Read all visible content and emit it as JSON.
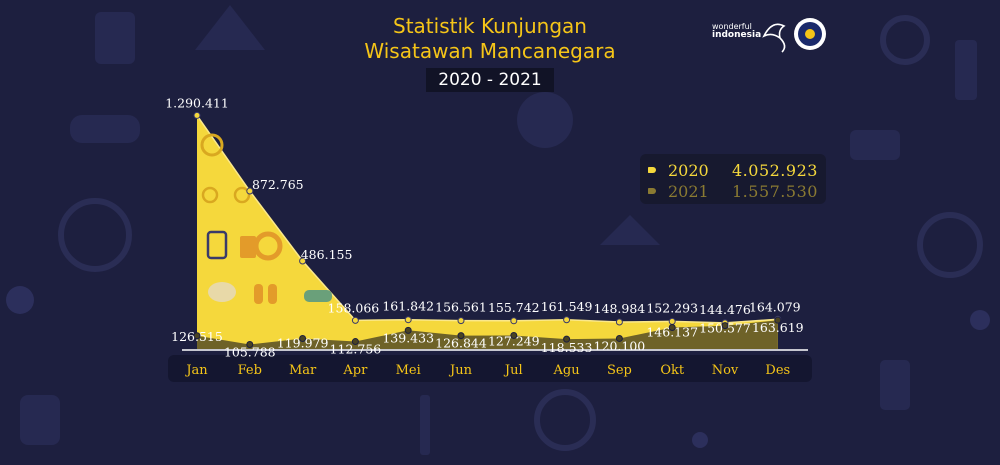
{
  "header": {
    "title_line1": "Statistik Kunjungan",
    "title_line2": "Wisatawan Mancanegara",
    "years": "2020 - 2021"
  },
  "logo": {
    "line1": "wonderful",
    "line2": "indonesia",
    "icons": [
      "wonderful-indonesia-logo",
      "ministry-emblem"
    ]
  },
  "colors": {
    "background": "#1d1f3f",
    "series_2020": "#f5d83c",
    "series_2021": "#6e6228",
    "accent": "#f5c518"
  },
  "legend": {
    "items": [
      {
        "year": "2020",
        "total": "4.052.923"
      },
      {
        "year": "2021",
        "total": "1.557.530"
      }
    ]
  },
  "chart_data": {
    "type": "area",
    "title": "Statistik Kunjungan Wisatawan Mancanegara",
    "subtitle": "2020 - 2021",
    "categories": [
      "Jan",
      "Feb",
      "Mar",
      "Apr",
      "Mei",
      "Jun",
      "Jul",
      "Agu",
      "Sep",
      "Okt",
      "Nov",
      "Des"
    ],
    "series": [
      {
        "name": "2020",
        "values": [
          1290411,
          872765,
          486155,
          158066,
          161842,
          156561,
          155742,
          161549,
          148984,
          152293,
          144476,
          164079
        ],
        "labels": [
          "1.290.411",
          "872.765",
          "486.155",
          "158.066",
          "161.842",
          "156.561",
          "155.742",
          "161.549",
          "148.984",
          "152.293",
          "144.476",
          "164.079"
        ]
      },
      {
        "name": "2021",
        "values": [
          126515,
          105788,
          119979,
          112756,
          139433,
          126844,
          127249,
          118533,
          120100,
          146137,
          150577,
          163619
        ],
        "labels": [
          "126.515",
          "105.788",
          "119.979",
          "112.756",
          "139.433",
          "126.844",
          "127.249",
          "118.533",
          "120.100",
          "146.137",
          "150.577",
          "163.619"
        ]
      }
    ],
    "grid": false,
    "legend_position": "right"
  }
}
